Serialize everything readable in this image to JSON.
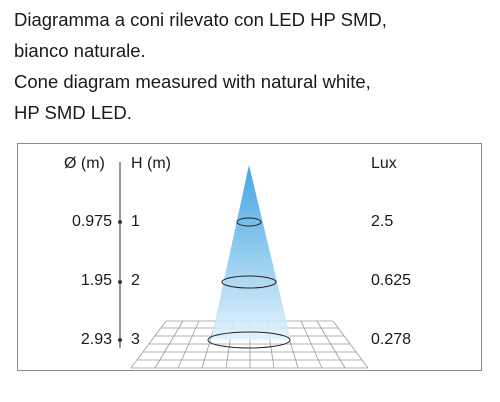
{
  "caption": {
    "it_line1": "Diagramma a coni rilevato con LED HP SMD,",
    "it_line2": "bianco naturale.",
    "en_line1": "Cone diagram measured with natural white,",
    "en_line2": "HP SMD LED."
  },
  "headers": {
    "diameter": "Ø (m)",
    "height": "H (m)",
    "lux": "Lux"
  },
  "rows": [
    {
      "diameter": "0.975",
      "height": "1",
      "lux": "2.5"
    },
    {
      "diameter": "1.95",
      "height": "2",
      "lux": "0.625"
    },
    {
      "diameter": "2.93",
      "height": "3",
      "lux": "0.278"
    }
  ],
  "colors": {
    "cone_top": "#2f9be0",
    "cone_bottom": "#dff1fb",
    "line": "#222222",
    "grid": "#9a9a9a"
  }
}
